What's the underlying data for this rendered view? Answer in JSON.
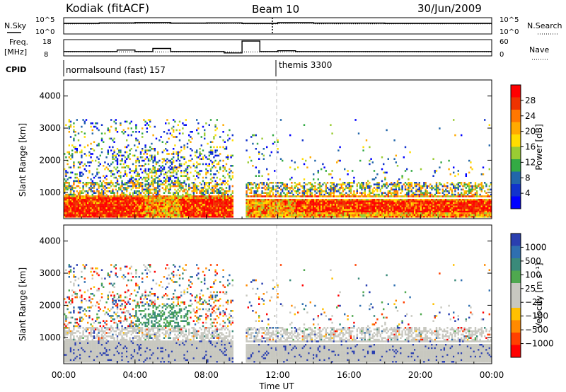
{
  "header": {
    "title": "Kodiak (fitACF)",
    "beam": "Beam 10",
    "date": "30/Jun/2009"
  },
  "top_panels": {
    "nsky_label": "N.Sky",
    "nsky_ticks": [
      "10^5",
      "10^0"
    ],
    "nsearch_label": "N.Search",
    "nsearch_ticks": [
      "10^5",
      "10^0"
    ],
    "freq_label_1": "Freq.",
    "freq_label_2": "[MHz]",
    "freq_ticks": [
      "18",
      "8"
    ],
    "nave_label": "Nave",
    "nave_ticks": [
      "60",
      "0"
    ],
    "cpid_label": "CPID",
    "cpid_segments": [
      "normalsound (fast) 157",
      "themis 3300"
    ]
  },
  "axes": {
    "ylabel": "Slant Range [km]",
    "xlabel": "Time UT",
    "yticks": [
      "4000",
      "3000",
      "2000",
      "1000"
    ],
    "xticks": [
      "00:00",
      "04:00",
      "08:00",
      "12:00",
      "16:00",
      "20:00",
      "00:00"
    ]
  },
  "power_scale": {
    "label": "Power [dB]",
    "ticks": [
      "28",
      "24",
      "20",
      "16",
      "12",
      "8",
      "4"
    ],
    "colors": [
      "#ff0000",
      "#ee3300",
      "#ff7700",
      "#ffaa00",
      "#ffdd00",
      "#99cc33",
      "#33aa44",
      "#2266aa",
      "#1133cc",
      "#0000ff"
    ]
  },
  "velocity_scale": {
    "label": "Velocity [m s⁻¹]",
    "ticks": [
      "1000",
      "500",
      "100",
      "25",
      "−25",
      "−100",
      "−500",
      "−1000"
    ],
    "colors": [
      "#2a3fb0",
      "#2f6fb0",
      "#3a8a7a",
      "#4fa84f",
      "#c8c8c0",
      "#c8c8c0",
      "#ffc000",
      "#ff8a00",
      "#ff4000",
      "#ff0000"
    ]
  },
  "chart_data": [
    {
      "type": "line",
      "panel": "N.Sky / N.Search",
      "x": [
        "00:00",
        "02:00",
        "04:00",
        "06:00",
        "08:00",
        "10:00",
        "12:00",
        "14:00",
        "16:00",
        "18:00",
        "20:00",
        "22:00",
        "24:00"
      ],
      "yscale": "log",
      "ylim": [
        1,
        100000
      ],
      "series": [
        {
          "values": [
            2000,
            3000,
            4000,
            2500,
            3000,
            2000,
            3500,
            2500,
            2500,
            2000,
            2000,
            2000,
            2000
          ]
        },
        {
          "values": [
            1500,
            1800,
            2000,
            2000,
            1800,
            1500,
            1800,
            1500,
            1500,
            1500,
            1500,
            1500,
            1500
          ]
        }
      ]
    },
    {
      "type": "line",
      "panel": "Freq. / Nave",
      "x": [
        "00:00",
        "01:00",
        "02:00",
        "03:00",
        "04:00",
        "05:00",
        "06:00",
        "07:00",
        "08:00",
        "09:00",
        "10:00",
        "11:00",
        "12:00",
        "13:00",
        "16:00",
        "20:00",
        "24:00"
      ],
      "ylim": [
        8,
        18
      ],
      "series": [
        {
          "values": [
            10.5,
            10.5,
            10.5,
            11.5,
            10.5,
            12.5,
            10.5,
            10.5,
            10.5,
            9.5,
            17.5,
            10.5,
            11,
            10.5,
            10.5,
            10.5,
            10.5
          ]
        }
      ]
    },
    {
      "type": "heatmap",
      "panel": "Power",
      "xlabel": "Time UT",
      "ylabel": "Slant Range [km]",
      "xlim": [
        "00:00",
        "24:00"
      ],
      "ylim": [
        180,
        4500
      ],
      "zlabel": "Power [dB]",
      "zlim": [
        0,
        32
      ],
      "data_gap": [
        "09:30",
        "10:10"
      ]
    },
    {
      "type": "heatmap",
      "panel": "Velocity",
      "xlabel": "Time UT",
      "ylabel": "Slant Range [km]",
      "xlim": [
        "00:00",
        "24:00"
      ],
      "ylim": [
        180,
        4500
      ],
      "zlabel": "Velocity [m s⁻¹]",
      "zlim": [
        -1000,
        1000
      ],
      "data_gap": [
        "09:30",
        "10:10"
      ]
    }
  ]
}
